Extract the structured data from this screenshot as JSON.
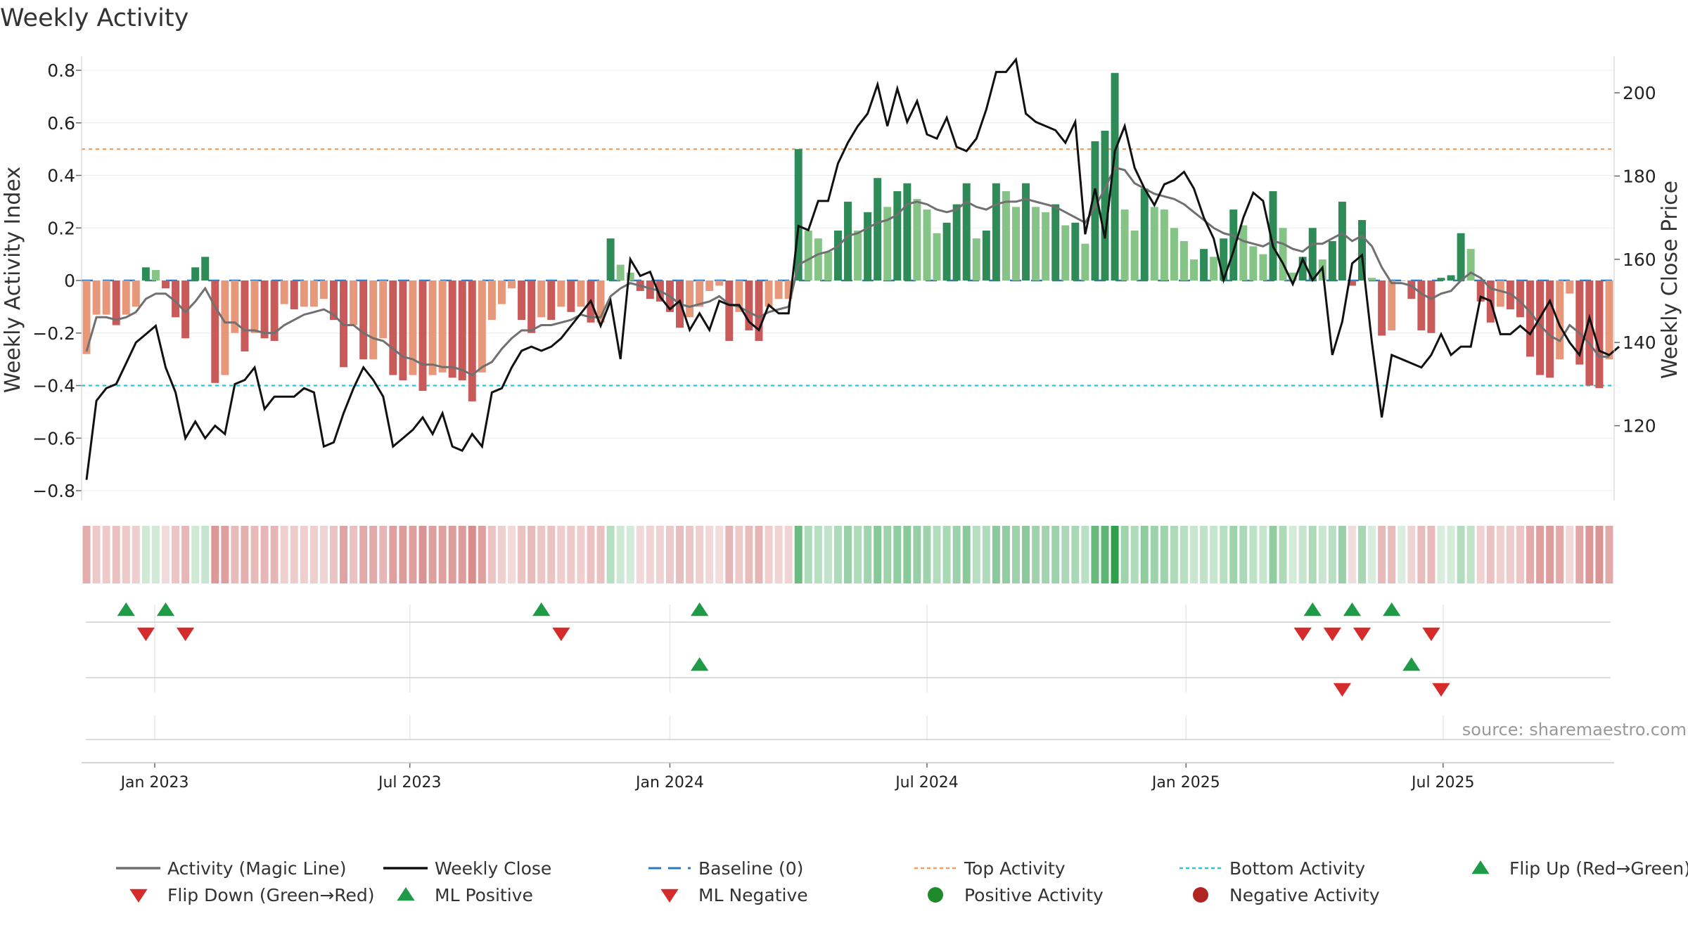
{
  "chart_data": {
    "type": "bar",
    "title": "Weekly Activity",
    "ylabel": "Weekly Activity Index",
    "y2label": "Weekly Close Price",
    "source": "source: sharemaestro.com",
    "ylim": [
      -0.85,
      0.8
    ],
    "y_ticks": [
      {
        "v": 0.8,
        "label": "0.8"
      },
      {
        "v": 0.6,
        "label": "0.6"
      },
      {
        "v": 0.4,
        "label": "0.4"
      },
      {
        "v": 0.2,
        "label": "0.2"
      },
      {
        "v": 0,
        "label": "0"
      },
      {
        "v": -0.2,
        "label": "−0.2"
      },
      {
        "v": -0.4,
        "label": "−0.4"
      },
      {
        "v": -0.6,
        "label": "−0.6"
      },
      {
        "v": -0.8,
        "label": "−0.8"
      }
    ],
    "y2lim": [
      103,
      214
    ],
    "y2_ticks": [
      {
        "v": 200,
        "label": "200"
      },
      {
        "v": 180,
        "label": "180"
      },
      {
        "v": 160,
        "label": "160"
      },
      {
        "v": 140,
        "label": "140"
      },
      {
        "v": 120,
        "label": "120"
      }
    ],
    "x_ticks": [
      {
        "week": 6.9,
        "label": "Jan 2023"
      },
      {
        "week": 32.7,
        "label": "Jul 2023"
      },
      {
        "week": 59.0,
        "label": "Jan 2024"
      },
      {
        "week": 85.0,
        "label": "Jul 2024"
      },
      {
        "week": 111.2,
        "label": "Jan 2025"
      },
      {
        "week": 137.2,
        "label": "Jul 2025"
      }
    ],
    "top_activity": 0.5,
    "bottom_activity": -0.4,
    "activity": [
      -0.28,
      -0.13,
      -0.13,
      -0.17,
      -0.13,
      -0.1,
      0.05,
      0.04,
      -0.03,
      -0.14,
      -0.22,
      0.05,
      0.09,
      -0.39,
      -0.36,
      -0.2,
      -0.27,
      -0.2,
      -0.22,
      -0.23,
      -0.09,
      -0.11,
      -0.1,
      -0.1,
      -0.07,
      -0.15,
      -0.33,
      -0.17,
      -0.3,
      -0.3,
      -0.22,
      -0.36,
      -0.38,
      -0.36,
      -0.42,
      -0.36,
      -0.35,
      -0.37,
      -0.38,
      -0.46,
      -0.35,
      -0.15,
      -0.09,
      -0.03,
      -0.15,
      -0.2,
      -0.14,
      -0.15,
      -0.1,
      -0.12,
      -0.1,
      -0.16,
      -0.16,
      0.16,
      0.06,
      0.03,
      -0.04,
      -0.07,
      -0.08,
      -0.12,
      -0.18,
      -0.14,
      -0.1,
      -0.04,
      -0.02,
      -0.23,
      -0.12,
      -0.19,
      -0.23,
      -0.1,
      -0.07,
      -0.07,
      0.5,
      0.19,
      0.16,
      0.11,
      0.19,
      0.3,
      0.19,
      0.26,
      0.39,
      0.28,
      0.34,
      0.37,
      0.31,
      0.27,
      0.18,
      0.22,
      0.29,
      0.37,
      0.16,
      0.19,
      0.37,
      0.34,
      0.28,
      0.37,
      0.28,
      0.26,
      0.29,
      0.21,
      0.22,
      0.14,
      0.53,
      0.57,
      0.79,
      0.27,
      0.19,
      0.35,
      0.28,
      0.27,
      0.2,
      0.15,
      0.08,
      0.12,
      0.09,
      0.16,
      0.27,
      0.21,
      0.13,
      0.1,
      0.34,
      0.2,
      0.03,
      0.09,
      0.2,
      0.08,
      0.15,
      0.3,
      -0.02,
      0.23,
      0.01,
      -0.21,
      -0.19,
      0.0,
      -0.07,
      -0.19,
      -0.2,
      0.01,
      0.02,
      0.18,
      0.12,
      -0.08,
      -0.16,
      -0.1,
      -0.11,
      -0.14,
      -0.29,
      -0.36,
      -0.37,
      -0.3,
      -0.05,
      -0.32,
      -0.4,
      -0.41,
      -0.3
    ],
    "magic_line": [
      -0.27,
      -0.14,
      -0.14,
      -0.15,
      -0.14,
      -0.12,
      -0.07,
      -0.05,
      -0.05,
      -0.08,
      -0.12,
      -0.08,
      -0.03,
      -0.1,
      -0.16,
      -0.16,
      -0.19,
      -0.19,
      -0.2,
      -0.2,
      -0.17,
      -0.15,
      -0.13,
      -0.12,
      -0.11,
      -0.13,
      -0.17,
      -0.17,
      -0.2,
      -0.22,
      -0.23,
      -0.26,
      -0.29,
      -0.3,
      -0.32,
      -0.32,
      -0.33,
      -0.33,
      -0.34,
      -0.36,
      -0.33,
      -0.31,
      -0.26,
      -0.22,
      -0.19,
      -0.19,
      -0.17,
      -0.17,
      -0.16,
      -0.15,
      -0.13,
      -0.14,
      -0.14,
      -0.06,
      -0.03,
      -0.01,
      -0.02,
      -0.03,
      -0.04,
      -0.06,
      -0.09,
      -0.1,
      -0.09,
      -0.08,
      -0.06,
      -0.09,
      -0.1,
      -0.12,
      -0.14,
      -0.12,
      -0.11,
      -0.1,
      0.06,
      0.08,
      0.1,
      0.11,
      0.13,
      0.17,
      0.18,
      0.2,
      0.22,
      0.23,
      0.25,
      0.29,
      0.3,
      0.29,
      0.27,
      0.26,
      0.27,
      0.3,
      0.28,
      0.27,
      0.29,
      0.3,
      0.3,
      0.31,
      0.3,
      0.29,
      0.28,
      0.26,
      0.24,
      0.22,
      0.28,
      0.35,
      0.43,
      0.42,
      0.37,
      0.35,
      0.33,
      0.32,
      0.31,
      0.29,
      0.26,
      0.23,
      0.2,
      0.18,
      0.17,
      0.15,
      0.14,
      0.13,
      0.15,
      0.14,
      0.12,
      0.11,
      0.14,
      0.14,
      0.16,
      0.18,
      0.15,
      0.17,
      0.13,
      0.05,
      -0.01,
      -0.01,
      -0.02,
      -0.05,
      -0.07,
      -0.05,
      -0.04,
      0.0,
      0.03,
      0.01,
      -0.03,
      -0.04,
      -0.05,
      -0.08,
      -0.12,
      -0.17,
      -0.21,
      -0.23,
      -0.17,
      -0.2,
      -0.24,
      -0.29,
      -0.29
    ],
    "weekly_close": [
      107,
      126,
      129,
      130,
      135,
      140,
      142,
      144,
      134,
      128,
      117,
      121,
      117,
      120,
      118,
      130,
      131,
      134,
      124,
      127,
      127,
      127,
      129,
      128,
      115,
      116,
      123,
      129,
      134,
      131,
      127,
      115,
      117,
      119,
      122,
      118,
      123,
      115,
      114,
      118,
      115,
      128,
      129,
      134,
      138,
      139,
      138,
      139,
      141,
      144,
      147,
      150,
      144,
      150,
      136,
      160,
      156,
      157,
      151,
      148,
      150,
      143,
      147,
      143,
      150,
      149,
      149,
      145,
      143,
      149,
      147,
      147,
      168,
      167,
      174,
      174,
      183,
      188,
      192,
      195,
      202,
      192,
      201,
      193,
      198,
      190,
      189,
      194,
      187,
      186,
      189,
      196,
      205,
      205,
      208,
      195,
      193,
      192,
      191,
      188,
      193,
      166,
      177,
      165,
      186,
      192,
      182,
      177,
      173,
      178,
      179,
      181,
      177,
      170,
      165,
      155,
      162,
      170,
      176,
      174,
      163,
      159,
      154,
      160,
      155,
      158,
      137,
      145,
      159,
      161,
      140,
      122,
      137,
      136,
      135,
      134,
      137,
      142,
      137,
      139,
      139,
      151,
      150,
      142,
      142,
      144,
      142,
      146,
      150,
      144,
      140,
      137,
      146,
      138,
      137,
      139
    ],
    "flip_up_weeks": [
      4,
      8,
      46,
      62,
      124,
      128,
      132
    ],
    "flip_down_weeks": [
      6,
      10,
      48,
      123,
      126,
      129,
      136
    ],
    "ml_positive_weeks": [
      62,
      134
    ],
    "ml_negative_weeks": [
      127,
      137
    ],
    "legend": [
      {
        "label": "Activity (Magic Line)",
        "kind": "line",
        "color": "#707070"
      },
      {
        "label": "Weekly Close",
        "kind": "line",
        "color": "#111111"
      },
      {
        "label": "Baseline (0)",
        "kind": "dash",
        "color": "#2a79bf"
      },
      {
        "label": "Top Activity",
        "kind": "dot",
        "color": "#f0a060"
      },
      {
        "label": "Bottom Activity",
        "kind": "dot",
        "color": "#2cc4d6"
      },
      {
        "label": "Flip Up (Red→Green)",
        "kind": "tri-up",
        "color": "#1f9a46"
      },
      {
        "label": "Flip Down (Green→Red)",
        "kind": "tri-down",
        "color": "#d62b2b"
      },
      {
        "label": "ML Positive",
        "kind": "tri-up",
        "color": "#1f9a46"
      },
      {
        "label": "ML Negative",
        "kind": "tri-down",
        "color": "#d62b2b"
      },
      {
        "label": "Positive Activity",
        "kind": "circle",
        "color": "#1e8a2a"
      },
      {
        "label": "Negative Activity",
        "kind": "circle",
        "color": "#b02424"
      }
    ],
    "colors": {
      "bar_pos_strong": "#2e8b57",
      "bar_pos_light": "#86c386",
      "bar_neg_strong": "#c95a5a",
      "bar_neg_light": "#e8987a",
      "magic_line": "#707070",
      "close_line": "#111111",
      "baseline": "#2a79bf",
      "top_activity": "#f0a060",
      "bottom_activity": "#2cc4d6",
      "up": "#1f9a46",
      "down": "#d62b2b"
    }
  }
}
